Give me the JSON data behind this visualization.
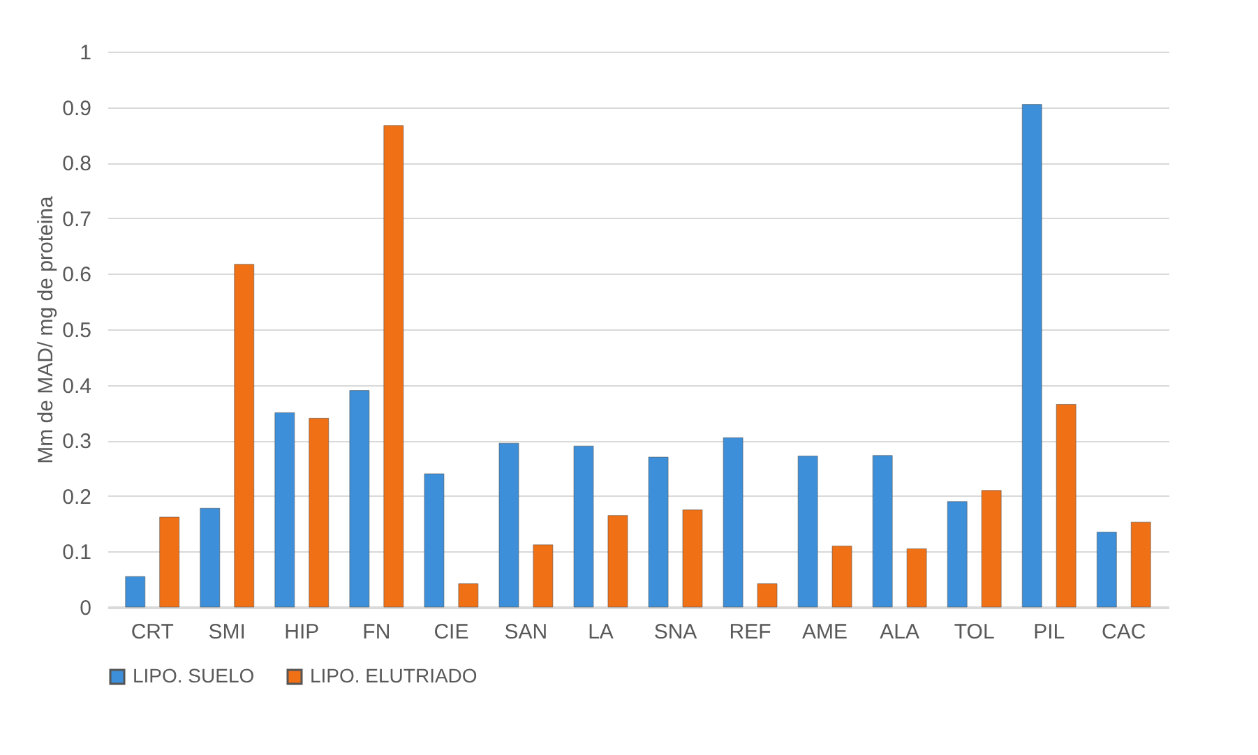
{
  "chart_data": {
    "type": "bar",
    "ylabel": "Mm de MAD/ mg de proteina",
    "categories": [
      "CRT",
      "SMI",
      "HIP",
      "FN",
      "CIE",
      "SAN",
      "LA",
      "SNA",
      "REF",
      "AME",
      "ALA",
      "TOL",
      "PIL",
      "CAC"
    ],
    "series": [
      {
        "name": "LIPO. SUELO",
        "color": "#3c8fd8",
        "values": [
          0.055,
          0.178,
          0.35,
          0.39,
          0.24,
          0.295,
          0.29,
          0.27,
          0.305,
          0.272,
          0.273,
          0.19,
          0.905,
          0.135
        ]
      },
      {
        "name": "LIPO. ELUTRIADO",
        "color": "#f07016",
        "values": [
          0.162,
          0.617,
          0.34,
          0.867,
          0.042,
          0.112,
          0.165,
          0.175,
          0.042,
          0.11,
          0.105,
          0.21,
          0.365,
          0.153
        ]
      }
    ],
    "ylim": [
      0,
      1
    ],
    "yticks": [
      0,
      0.1,
      0.2,
      0.3,
      0.4,
      0.5,
      0.6,
      0.7,
      0.8,
      0.9,
      1
    ],
    "grid": "y",
    "legend": "bottom"
  }
}
